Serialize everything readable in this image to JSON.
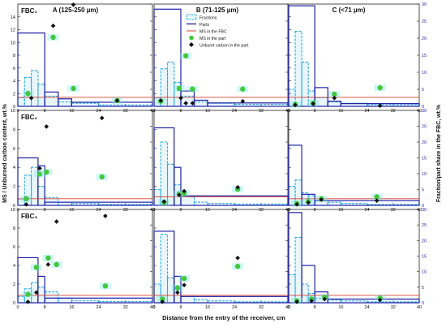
{
  "figure": {
    "column_titles": [
      "A (125-250 µm)",
      "B (71-125 µm)",
      "C (<71 µm)"
    ],
    "row_labels": [
      "FBC₁",
      "FBC₂",
      "FBC₃"
    ],
    "left_axis_label": "MS / Unburned carbon content, wt.%",
    "right_axis_label": "Fraction/part share in the FBC, wt.%",
    "x_axis_label": "Distance from the entry of the receiver, cm",
    "legend": [
      "Fractions",
      "Parts",
      "MS in the FBC",
      "MS in the part",
      "Unburnt carbon in the part"
    ]
  },
  "colors": {
    "fractions": "#29abe2",
    "parts": "#1f1fa8",
    "ms_fbc": "#d9402b",
    "ms_part": "#41c83c",
    "unburnt": "#111111",
    "left_axis": "#111111",
    "right_axis": "#1f1fa8"
  },
  "chart_data": {
    "type": "bar",
    "x_ticks": [
      "0",
      "8",
      "16",
      "24",
      "32",
      "40"
    ],
    "xlim": [
      0,
      40
    ],
    "left_ylims": [
      [
        0,
        16
      ],
      [
        0,
        10
      ],
      [
        0,
        10
      ]
    ],
    "left_ticks": [
      [
        "0",
        "2",
        "4",
        "6",
        "8",
        "10",
        "12",
        "14"
      ],
      [
        "0",
        "2",
        "4",
        "6",
        "8",
        "10"
      ],
      [
        "0",
        "2",
        "4",
        "6",
        "8",
        "10"
      ]
    ],
    "right_ylim": [
      0,
      30
    ],
    "right_ticks": [
      "0",
      "5",
      "10",
      "15",
      "20",
      "25",
      "30"
    ],
    "bin_edges": [
      0,
      2,
      4,
      6,
      8,
      12,
      16,
      24,
      40
    ],
    "panels": [
      {
        "row": 0,
        "col": 0,
        "parts": [
          [
            0,
            8,
            21.5
          ],
          [
            8,
            12,
            4.2
          ],
          [
            12,
            16,
            2.2
          ],
          [
            16,
            40,
            1.2
          ]
        ],
        "fractions": [
          2.5,
          8.5,
          10.5,
          6.5,
          3,
          1.3,
          0.9,
          0.4
        ],
        "ms_fbc": 1.4,
        "ms_part": [
          [
            3,
            2.0
          ],
          [
            10.5,
            10.8
          ],
          [
            16.5,
            2.8
          ],
          [
            29.5,
            0.9
          ]
        ],
        "unburnt": [
          [
            4,
            1.3
          ],
          [
            10.5,
            12.6
          ],
          [
            16.5,
            15.9
          ],
          [
            29.5,
            0.9
          ]
        ]
      },
      {
        "row": 0,
        "col": 1,
        "parts": [
          [
            0,
            8,
            28.5
          ],
          [
            8,
            12,
            4.5
          ],
          [
            12,
            16,
            1.8
          ],
          [
            16,
            40,
            1
          ]
        ],
        "fractions": [
          2.5,
          11,
          13,
          7,
          3,
          1.3,
          0.9,
          0.6
        ],
        "ms_fbc": 1.4,
        "ms_part": [
          [
            2,
            0.8
          ],
          [
            7.5,
            2.8
          ],
          [
            9.5,
            7.9
          ],
          [
            11.5,
            2.7
          ],
          [
            26.5,
            2.7
          ]
        ],
        "unburnt": [
          [
            2,
            0.9
          ],
          [
            8,
            1.3
          ],
          [
            9.5,
            0.5
          ],
          [
            11.5,
            0.5
          ],
          [
            26.5,
            0.8
          ]
        ]
      },
      {
        "row": 0,
        "col": 2,
        "parts": [
          [
            0,
            8,
            29.5
          ],
          [
            8,
            12,
            5.5
          ],
          [
            12,
            16,
            1.5
          ],
          [
            16,
            40,
            0.8
          ]
        ],
        "fractions": [
          5,
          22,
          13,
          4.5,
          2.5,
          1.3,
          0.9,
          0.5
        ],
        "ms_fbc": 1.4,
        "ms_part": [
          [
            2,
            0.3
          ],
          [
            7.5,
            0.5
          ],
          [
            14,
            1.9
          ],
          [
            28,
            2.9
          ]
        ],
        "unburnt": [
          [
            2,
            0.2
          ],
          [
            7.5,
            0.4
          ],
          [
            14,
            1.3
          ],
          [
            28,
            0.1
          ]
        ]
      },
      {
        "row": 1,
        "col": 0,
        "parts": [
          [
            0,
            6,
            15
          ],
          [
            6,
            8,
            12.5
          ],
          [
            8,
            40,
            1
          ]
        ],
        "fractions": [
          2,
          9.5,
          12,
          6,
          2.5,
          1,
          0.6,
          0.3
        ],
        "ms_fbc": 0.7,
        "ms_part": [
          [
            2.5,
            0.7
          ],
          [
            6.5,
            3.3
          ],
          [
            8.5,
            3.5
          ],
          [
            25,
            3.0
          ]
        ],
        "unburnt": [
          [
            2.5,
            0.1
          ],
          [
            6.5,
            3.9
          ],
          [
            8.5,
            8.3
          ],
          [
            25,
            9.2
          ]
        ]
      },
      {
        "row": 1,
        "col": 1,
        "parts": [
          [
            0,
            6,
            24.5
          ],
          [
            6,
            8,
            12
          ],
          [
            8,
            40,
            3
          ]
        ],
        "fractions": [
          5,
          20,
          13,
          6.5,
          3,
          1,
          0.6,
          0.4
        ],
        "ms_fbc": 0.9,
        "ms_part": [
          [
            3,
            0.3
          ],
          [
            7.5,
            1.2
          ],
          [
            9,
            1.3
          ],
          [
            25,
            1.7
          ]
        ],
        "unburnt": [
          [
            3,
            0.4
          ],
          [
            7.5,
            1.1
          ],
          [
            9,
            1.5
          ],
          [
            25,
            1.9
          ]
        ]
      },
      {
        "row": 1,
        "col": 2,
        "parts": [
          [
            0,
            4,
            19
          ],
          [
            4,
            8,
            3.5
          ],
          [
            8,
            40,
            1.5
          ]
        ],
        "fractions": [
          6,
          8,
          4,
          3,
          1.5,
          1,
          0.6,
          0.3
        ],
        "ms_fbc": 0.7,
        "ms_part": [
          [
            2.5,
            0.2
          ],
          [
            6,
            0.4
          ],
          [
            10,
            0.7
          ],
          [
            27,
            0.9
          ]
        ],
        "unburnt": [
          [
            2.5,
            0.1
          ],
          [
            6,
            0.3
          ],
          [
            10,
            0.6
          ],
          [
            27,
            0.5
          ]
        ]
      },
      {
        "row": 2,
        "col": 0,
        "parts": [
          [
            0,
            6,
            14.5
          ],
          [
            6,
            8,
            8.5
          ],
          [
            8,
            40,
            1.5
          ]
        ],
        "fractions": [
          2,
          4.5,
          6.5,
          5,
          3.5,
          1.5,
          0.7,
          0.4
        ],
        "ms_fbc": 0.8,
        "ms_part": [
          [
            3,
            0.9
          ],
          [
            5.5,
            3.8
          ],
          [
            9,
            4.8
          ],
          [
            11.5,
            4.1
          ],
          [
            26,
            1.8
          ]
        ],
        "unburnt": [
          [
            3,
            0.1
          ],
          [
            5.5,
            1.1
          ],
          [
            9,
            4.1
          ],
          [
            11.5,
            8.7
          ],
          [
            26,
            9.3
          ]
        ]
      },
      {
        "row": 2,
        "col": 1,
        "parts": [
          [
            0,
            6,
            23
          ],
          [
            6,
            8,
            8.5
          ],
          [
            8,
            40,
            2
          ]
        ],
        "fractions": [
          6,
          22,
          8,
          4.5,
          2,
          1,
          0.6,
          0.3
        ],
        "ms_fbc": 0.8,
        "ms_part": [
          [
            2.5,
            0.4
          ],
          [
            7,
            1.6
          ],
          [
            9,
            2.6
          ],
          [
            25,
            3.9
          ]
        ],
        "unburnt": [
          [
            2.5,
            0.1
          ],
          [
            7,
            1.1
          ],
          [
            9,
            1.9
          ],
          [
            25,
            4.8
          ]
        ]
      },
      {
        "row": 2,
        "col": 2,
        "parts": [
          [
            0,
            4,
            29
          ],
          [
            4,
            8,
            12
          ],
          [
            8,
            12,
            3.5
          ],
          [
            12,
            40,
            1.2
          ]
        ],
        "fractions": [
          9,
          21,
          6,
          3,
          1.5,
          0.9,
          0.6,
          0.3
        ],
        "ms_fbc": 0.8,
        "ms_part": [
          [
            2.5,
            0.2
          ],
          [
            7,
            0.4
          ],
          [
            11,
            0.6
          ],
          [
            28,
            0.5
          ]
        ],
        "unburnt": [
          [
            2.5,
            0.1
          ],
          [
            7,
            0.2
          ],
          [
            11,
            0.4
          ],
          [
            28,
            0.3
          ]
        ]
      }
    ]
  }
}
